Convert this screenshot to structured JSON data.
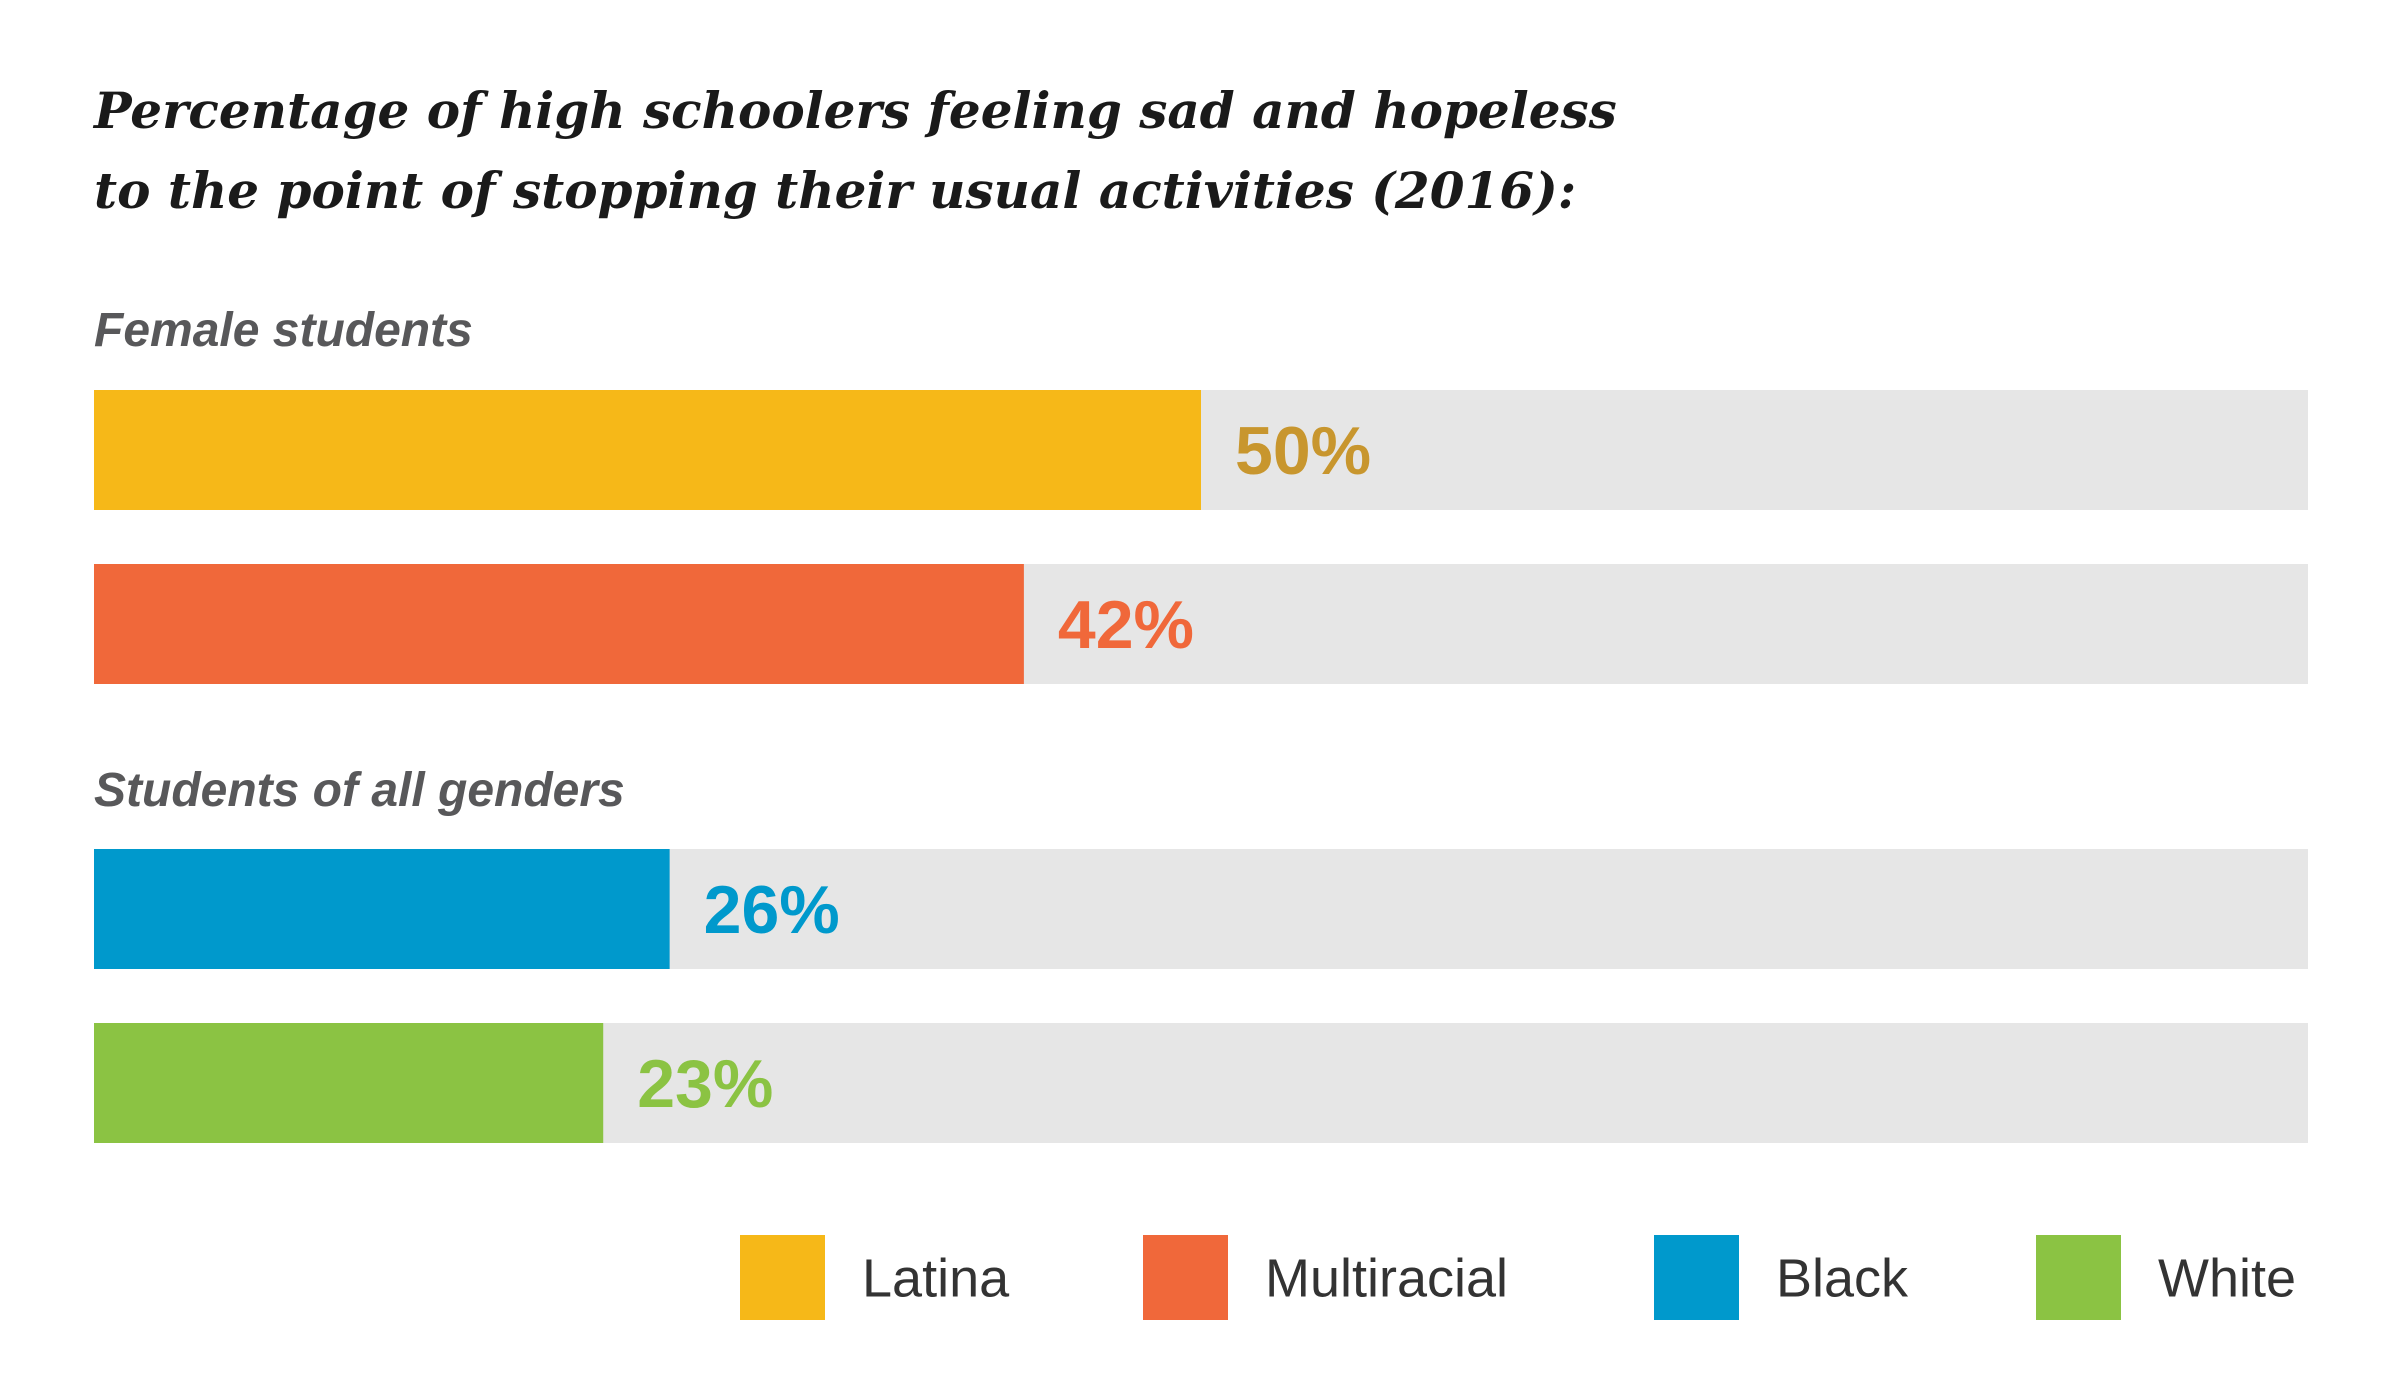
{
  "chart_data": {
    "type": "bar",
    "orientation": "horizontal",
    "title": [
      "Percentage of high schoolers feeling sad and hopeless",
      "to the point of stopping their usual activities (2016):"
    ],
    "xlim": [
      0,
      100
    ],
    "track_color": "#e6e6e6",
    "groups": [
      {
        "label": "Female students",
        "bars": [
          {
            "category": "Latina",
            "value": 50,
            "label": "50%",
            "color": "#f6b818",
            "label_color": "#c8962e"
          },
          {
            "category": "Multiracial",
            "value": 42,
            "label": "42%",
            "color": "#f0683a",
            "label_color": "#f0683a"
          }
        ]
      },
      {
        "label": "Students of all genders",
        "bars": [
          {
            "category": "Black",
            "value": 26,
            "label": "26%",
            "color": "#0099cc",
            "label_color": "#0099cc"
          },
          {
            "category": "White",
            "value": 23,
            "label": "23%",
            "color": "#8bc343",
            "label_color": "#8bc343"
          }
        ]
      }
    ],
    "legend": {
      "placement": "bottom-right",
      "items": [
        {
          "label": "Latina",
          "color": "#f6b818"
        },
        {
          "label": "Multiracial",
          "color": "#f0683a"
        },
        {
          "label": "Black",
          "color": "#0099cc"
        },
        {
          "label": "White",
          "color": "#8bc343"
        }
      ]
    }
  }
}
